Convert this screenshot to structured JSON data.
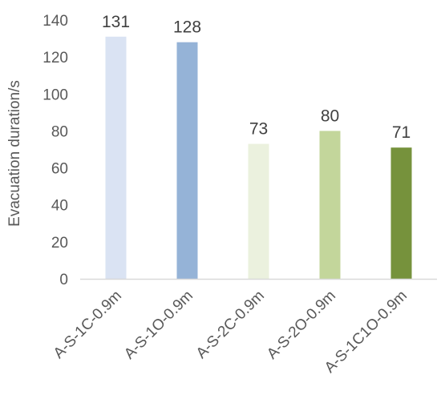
{
  "chart_data": {
    "type": "bar",
    "title": "",
    "xlabel": "",
    "ylabel": "Evacuation duration/s",
    "ylim": [
      0,
      140
    ],
    "yticks": [
      0,
      20,
      40,
      60,
      80,
      100,
      120,
      140
    ],
    "grid": false,
    "legend": "none",
    "categories": [
      "A-S-1C-0.9m",
      "A-S-1O-0.9m",
      "A-S-2C-0.9m",
      "A-S-2O-0.9m",
      "A-S-1C1O-0.9m"
    ],
    "values": [
      131,
      128,
      73,
      80,
      71
    ],
    "bar_colors": [
      "#dae3f3",
      "#95b3d7",
      "#ebf1de",
      "#c3d69b",
      "#76923c"
    ],
    "axis_color": "#d9d9d9"
  }
}
